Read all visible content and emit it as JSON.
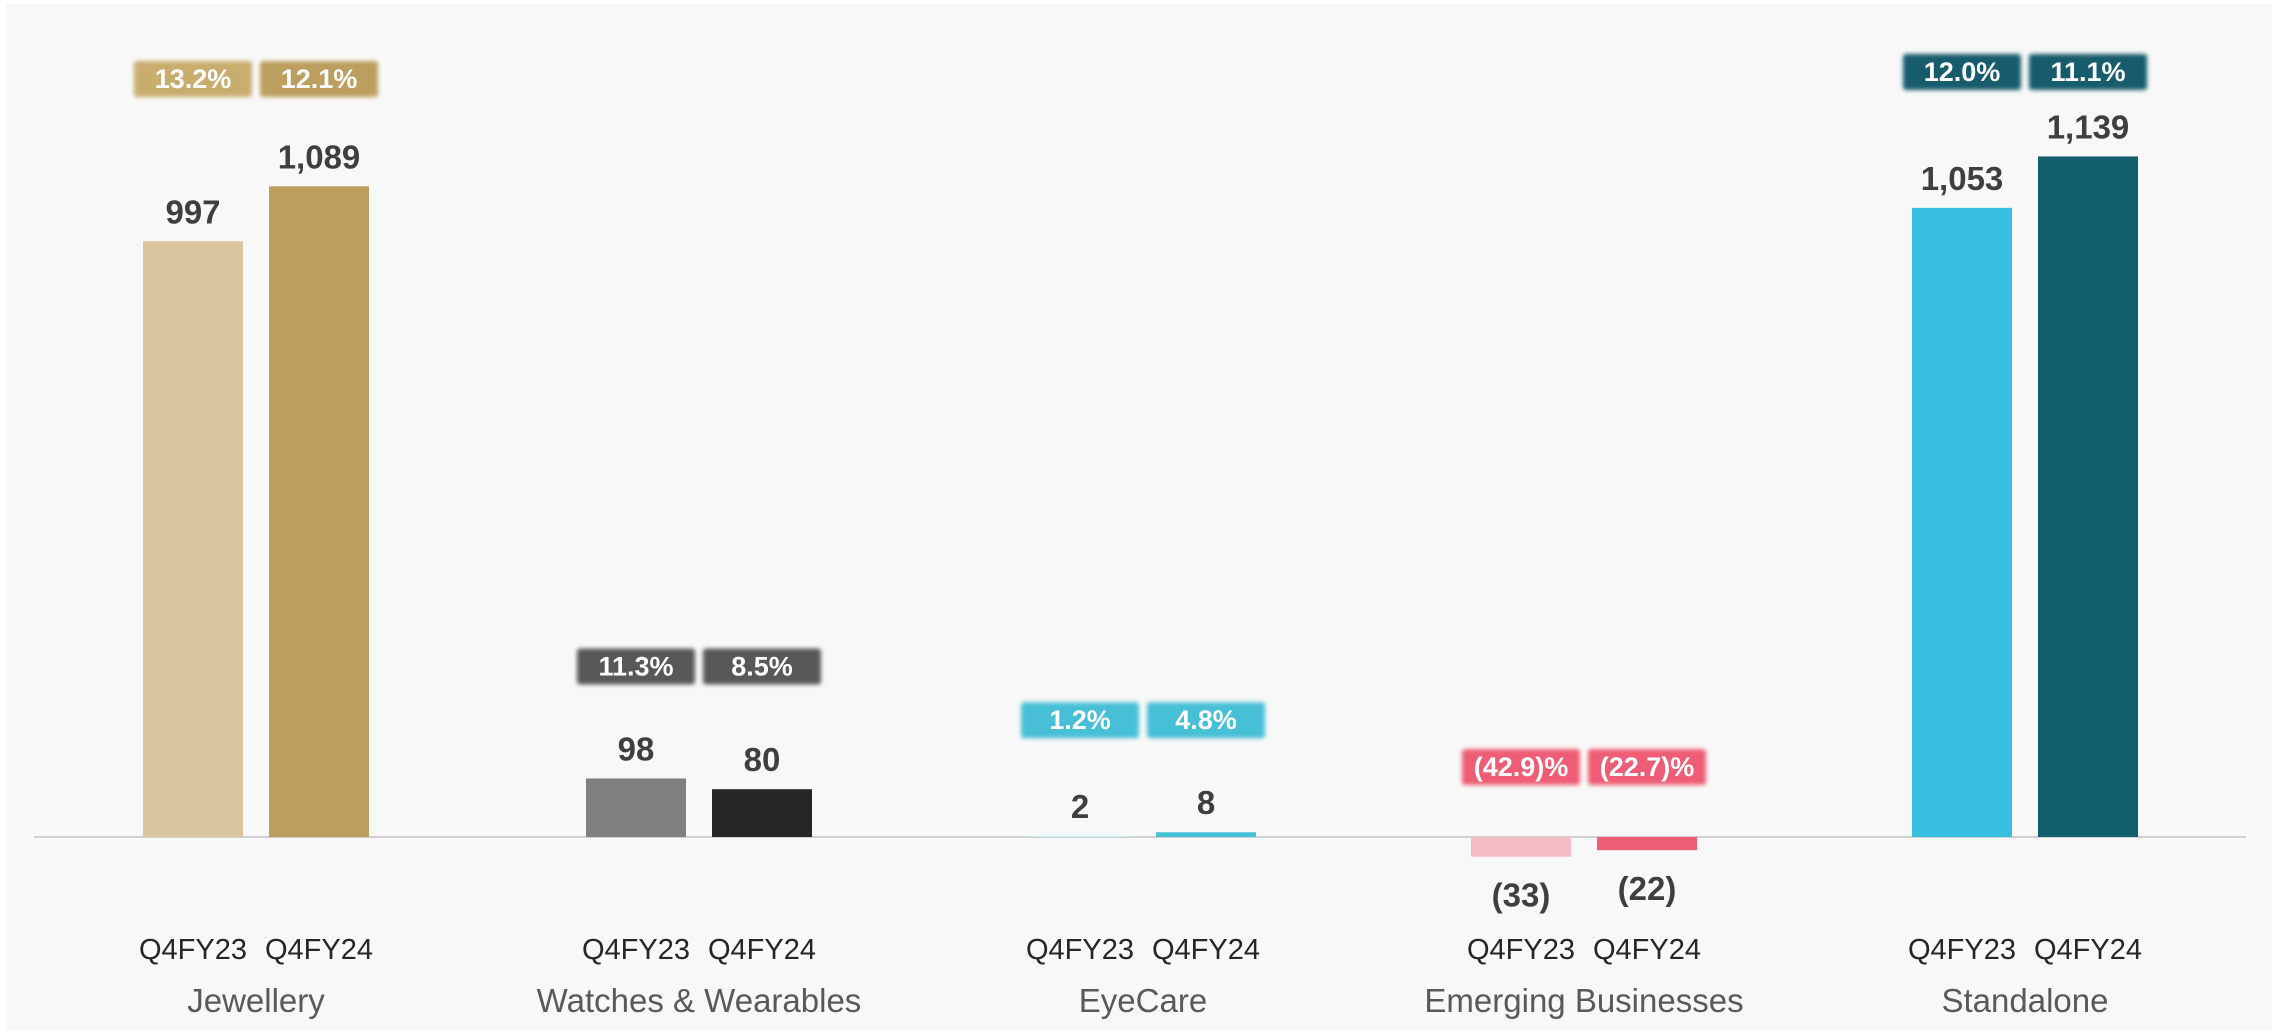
{
  "chart_data": {
    "type": "bar",
    "title": "",
    "xlabel": "",
    "ylabel": "",
    "ylim": [
      -40,
      1200
    ],
    "grid": false,
    "legend": "none",
    "groups": [
      {
        "name": "Jewellery",
        "bars": [
          {
            "period": "Q4FY23",
            "value": 997,
            "label": "997",
            "margin": "13.2%",
            "color": "#d9c69e",
            "badge_color": "#c9ad6e"
          },
          {
            "period": "Q4FY24",
            "value": 1089,
            "label": "1,089",
            "margin": "12.1%",
            "color": "#bc9f5f",
            "badge_color": "#bc9f5f"
          }
        ]
      },
      {
        "name": "Watches & Wearables",
        "bars": [
          {
            "period": "Q4FY23",
            "value": 98,
            "label": "98",
            "margin": "11.3%",
            "color": "#808080",
            "badge_color": "#595959"
          },
          {
            "period": "Q4FY24",
            "value": 80,
            "label": "80",
            "margin": "8.5%",
            "color": "#262626",
            "badge_color": "#595959"
          }
        ]
      },
      {
        "name": "EyeCare",
        "bars": [
          {
            "period": "Q4FY23",
            "value": 2,
            "label": "2",
            "margin": "1.2%",
            "color": "#c6ecf5",
            "badge_color": "#47bfd6"
          },
          {
            "period": "Q4FY24",
            "value": 8,
            "label": "8",
            "margin": "4.8%",
            "color": "#47bfd6",
            "badge_color": "#47bfd6"
          }
        ]
      },
      {
        "name": "Emerging Businesses",
        "bars": [
          {
            "period": "Q4FY23",
            "value": -33,
            "label": "(33)",
            "margin": "(42.9)%",
            "color": "#f6bcc4",
            "badge_color": "#ee5d74"
          },
          {
            "period": "Q4FY24",
            "value": -22,
            "label": "(22)",
            "margin": "(22.7)%",
            "color": "#ee5d74",
            "badge_color": "#ee5d74"
          }
        ]
      },
      {
        "name": "Standalone",
        "bars": [
          {
            "period": "Q4FY23",
            "value": 1053,
            "label": "1,053",
            "margin": "12.0%",
            "color": "#38bfdf",
            "badge_color": "#155c6c"
          },
          {
            "period": "Q4FY24",
            "value": 1139,
            "label": "1,139",
            "margin": "11.1%",
            "color": "#135e6c",
            "badge_color": "#155c6c"
          }
        ]
      }
    ]
  }
}
